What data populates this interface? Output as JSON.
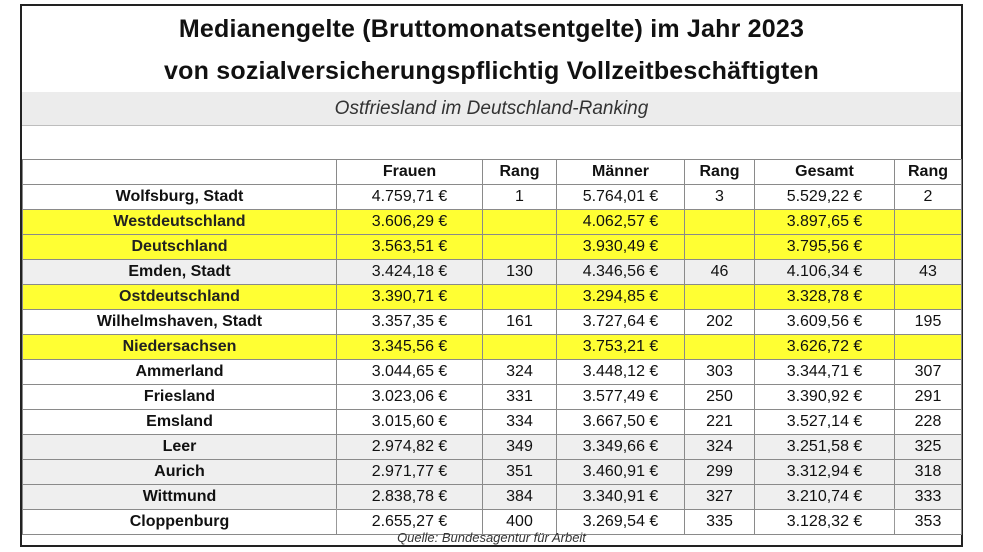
{
  "title_line1": "Medianengelte (Bruttomonatsentgelte) im Jahr 2023",
  "title_line2": "von sozialversicherungspflichtig Vollzeitbeschäftigten",
  "subtitle": "Ostfriesland im Deutschland-Ranking",
  "headers": [
    "",
    "Frauen",
    "Rang",
    "Männer",
    "Rang",
    "Gesamt",
    "Rang"
  ],
  "rows": [
    {
      "name": "Wolfsburg, Stadt",
      "frauen": "4.759,71 €",
      "rang_f": "1",
      "maenner": "5.764,01 €",
      "rang_m": "3",
      "gesamt": "5.529,22 €",
      "rang_g": "2",
      "style": "white"
    },
    {
      "name": "Westdeutschland",
      "frauen": "3.606,29 €",
      "rang_f": "",
      "maenner": "4.062,57 €",
      "rang_m": "",
      "gesamt": "3.897,65 €",
      "rang_g": "",
      "style": "hl"
    },
    {
      "name": "Deutschland",
      "frauen": "3.563,51 €",
      "rang_f": "",
      "maenner": "3.930,49 €",
      "rang_m": "",
      "gesamt": "3.795,56 €",
      "rang_g": "",
      "style": "hl"
    },
    {
      "name": "Emden, Stadt",
      "frauen": "3.424,18 €",
      "rang_f": "130",
      "maenner": "4.346,56 €",
      "rang_m": "46",
      "gesamt": "4.106,34 €",
      "rang_g": "43",
      "style": "grey"
    },
    {
      "name": "Ostdeutschland",
      "frauen": "3.390,71 €",
      "rang_f": "",
      "maenner": "3.294,85 €",
      "rang_m": "",
      "gesamt": "3.328,78 €",
      "rang_g": "",
      "style": "hl"
    },
    {
      "name": "Wilhelmshaven, Stadt",
      "frauen": "3.357,35 €",
      "rang_f": "161",
      "maenner": "3.727,64 €",
      "rang_m": "202",
      "gesamt": "3.609,56 €",
      "rang_g": "195",
      "style": "white"
    },
    {
      "name": "Niedersachsen",
      "frauen": "3.345,56 €",
      "rang_f": "",
      "maenner": "3.753,21 €",
      "rang_m": "",
      "gesamt": "3.626,72 €",
      "rang_g": "",
      "style": "hl"
    },
    {
      "name": "Ammerland",
      "frauen": "3.044,65 €",
      "rang_f": "324",
      "maenner": "3.448,12 €",
      "rang_m": "303",
      "gesamt": "3.344,71 €",
      "rang_g": "307",
      "style": "white"
    },
    {
      "name": "Friesland",
      "frauen": "3.023,06 €",
      "rang_f": "331",
      "maenner": "3.577,49 €",
      "rang_m": "250",
      "gesamt": "3.390,92 €",
      "rang_g": "291",
      "style": "white"
    },
    {
      "name": "Emsland",
      "frauen": "3.015,60 €",
      "rang_f": "334",
      "maenner": "3.667,50 €",
      "rang_m": "221",
      "gesamt": "3.527,14 €",
      "rang_g": "228",
      "style": "white"
    },
    {
      "name": "Leer",
      "frauen": "2.974,82 €",
      "rang_f": "349",
      "maenner": "3.349,66 €",
      "rang_m": "324",
      "gesamt": "3.251,58 €",
      "rang_g": "325",
      "style": "grey"
    },
    {
      "name": "Aurich",
      "frauen": "2.971,77 €",
      "rang_f": "351",
      "maenner": "3.460,91 €",
      "rang_m": "299",
      "gesamt": "3.312,94 €",
      "rang_g": "318",
      "style": "grey"
    },
    {
      "name": "Wittmund",
      "frauen": "2.838,78 €",
      "rang_f": "384",
      "maenner": "3.340,91 €",
      "rang_m": "327",
      "gesamt": "3.210,74 €",
      "rang_g": "333",
      "style": "grey"
    },
    {
      "name": "Cloppenburg",
      "frauen": "2.655,27 €",
      "rang_f": "400",
      "maenner": "3.269,54 €",
      "rang_m": "335",
      "gesamt": "3.128,32 €",
      "rang_g": "353",
      "style": "white"
    }
  ],
  "source": "Quelle: Bundesagentur für Arbeit",
  "colors": {
    "highlight": "#ffff33",
    "grey_row": "#efefef",
    "subtitle_band": "#ececec"
  }
}
